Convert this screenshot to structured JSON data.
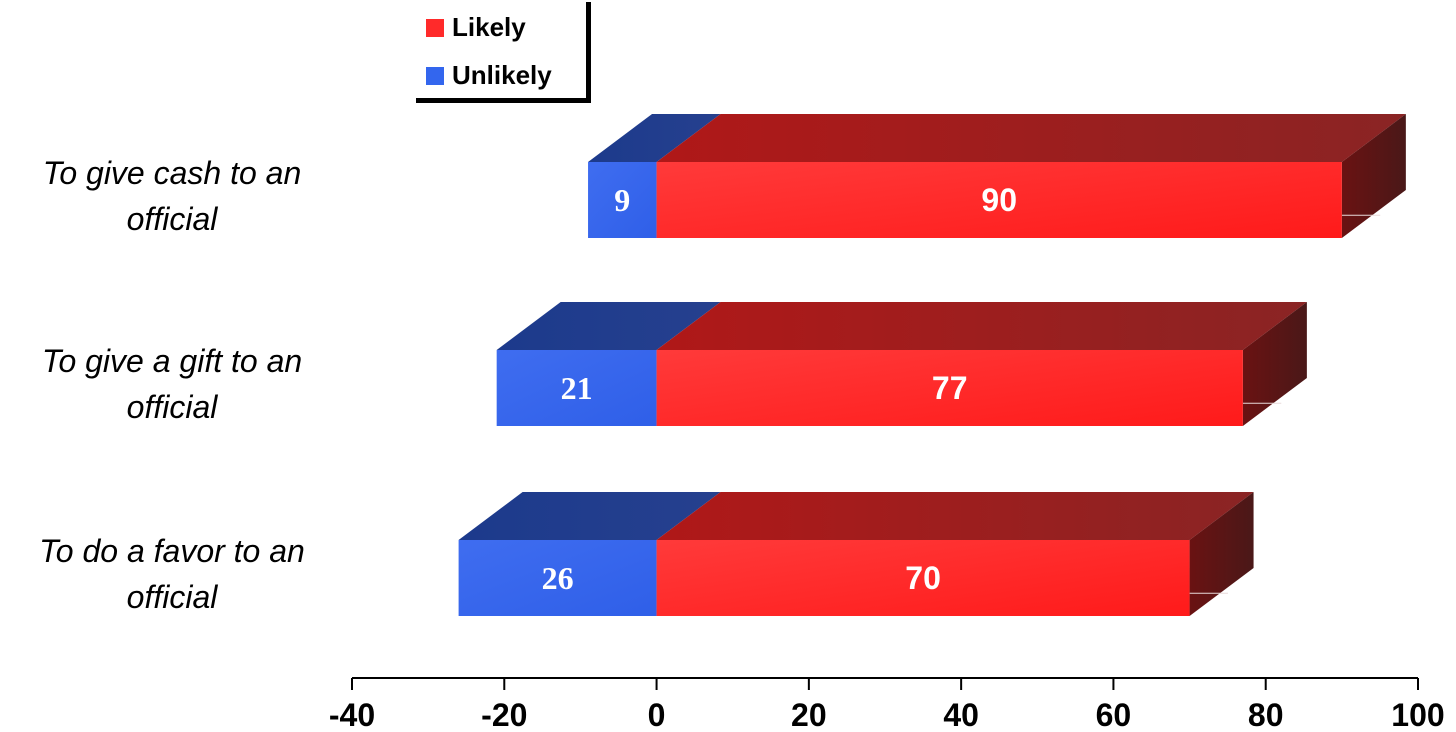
{
  "chart_data": {
    "type": "bar",
    "orientation": "horizontal",
    "stacked": true,
    "categories": [
      "To give cash to an official",
      "To give a gift to an official",
      "To do a favor to an official"
    ],
    "category_lines": [
      [
        "To give cash to an",
        "official"
      ],
      [
        "To give a gift to an",
        "official"
      ],
      [
        "To do a favor to an",
        "official"
      ]
    ],
    "series": [
      {
        "name": "Likely",
        "values": [
          90,
          77,
          70
        ],
        "color": "#ff2a2a",
        "data_labels": [
          "90",
          "77",
          "70"
        ]
      },
      {
        "name": "Unlikely",
        "values": [
          -9,
          -21,
          -26
        ],
        "color": "#3366ee",
        "data_labels": [
          "9",
          "21",
          "26"
        ]
      }
    ],
    "xlim": [
      -40,
      100
    ],
    "ticks": [
      -40,
      -20,
      0,
      20,
      40,
      60,
      80,
      100
    ],
    "tick_labels": [
      "-40",
      "-20",
      "0",
      "20",
      "40",
      "60",
      "80",
      "100"
    ],
    "title": "",
    "xlabel": "",
    "ylabel": "",
    "grid": false,
    "legend_position": "top-left"
  }
}
